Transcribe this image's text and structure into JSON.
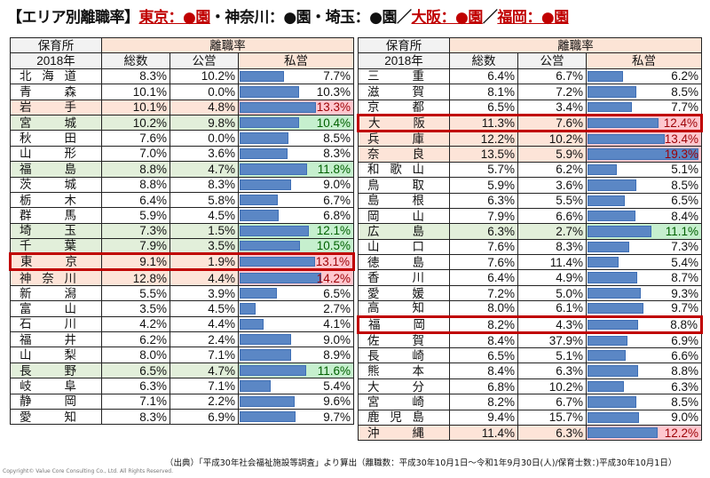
{
  "title": {
    "prefix": "【エリア別離職率】",
    "tokyo": "東京：●園",
    "mid": "・神奈川：●園・埼玉：●園／",
    "osaka": "大阪：●園",
    "sep": "／",
    "fukuoka": "福岡：●園"
  },
  "header": {
    "facility": "保育所",
    "year": "2018年",
    "rate": "離職率",
    "total": "総数",
    "public": "公営",
    "private": "私営"
  },
  "colors": {
    "bar": "#5b87c5",
    "pink_bg": "#ffc7ce",
    "pink_text": "#9c0006",
    "green_bg": "#c6efce",
    "green_text": "#006100",
    "highlight_border": "#c00000"
  },
  "bar_max": 19.3,
  "left": [
    {
      "name": "北海道",
      "total": "8.3%",
      "public": "10.2%",
      "private": "7.7%",
      "p": 7.7,
      "style": ""
    },
    {
      "name": "青森",
      "total": "10.1%",
      "public": "0.0%",
      "private": "10.3%",
      "p": 10.3,
      "style": ""
    },
    {
      "name": "岩手",
      "total": "10.1%",
      "public": "4.8%",
      "private": "13.3%",
      "p": 13.3,
      "style": "pink"
    },
    {
      "name": "宮城",
      "total": "10.2%",
      "public": "9.8%",
      "private": "10.4%",
      "p": 10.4,
      "style": "green"
    },
    {
      "name": "秋田",
      "total": "7.6%",
      "public": "0.0%",
      "private": "8.5%",
      "p": 8.5,
      "style": ""
    },
    {
      "name": "山形",
      "total": "7.0%",
      "public": "3.6%",
      "private": "8.3%",
      "p": 8.3,
      "style": ""
    },
    {
      "name": "福島",
      "total": "8.8%",
      "public": "4.7%",
      "private": "11.8%",
      "p": 11.8,
      "style": "green"
    },
    {
      "name": "茨城",
      "total": "8.8%",
      "public": "8.3%",
      "private": "9.0%",
      "p": 9.0,
      "style": ""
    },
    {
      "name": "栃木",
      "total": "6.4%",
      "public": "5.8%",
      "private": "6.7%",
      "p": 6.7,
      "style": ""
    },
    {
      "name": "群馬",
      "total": "5.9%",
      "public": "4.5%",
      "private": "6.8%",
      "p": 6.8,
      "style": ""
    },
    {
      "name": "埼玉",
      "total": "7.3%",
      "public": "1.5%",
      "private": "12.1%",
      "p": 12.1,
      "style": "green"
    },
    {
      "name": "千葉",
      "total": "7.9%",
      "public": "3.5%",
      "private": "10.5%",
      "p": 10.5,
      "style": "green"
    },
    {
      "name": "東京",
      "total": "9.1%",
      "public": "1.9%",
      "private": "13.1%",
      "p": 13.1,
      "style": "pink",
      "highlight": true
    },
    {
      "name": "神奈川",
      "total": "12.8%",
      "public": "4.4%",
      "private": "14.2%",
      "p": 14.2,
      "style": "pink"
    },
    {
      "name": "新潟",
      "total": "5.5%",
      "public": "3.9%",
      "private": "6.5%",
      "p": 6.5,
      "style": ""
    },
    {
      "name": "富山",
      "total": "3.5%",
      "public": "4.5%",
      "private": "2.7%",
      "p": 2.7,
      "style": ""
    },
    {
      "name": "石川",
      "total": "4.2%",
      "public": "4.4%",
      "private": "4.1%",
      "p": 4.1,
      "style": ""
    },
    {
      "name": "福井",
      "total": "6.2%",
      "public": "2.4%",
      "private": "9.0%",
      "p": 9.0,
      "style": ""
    },
    {
      "name": "山梨",
      "total": "8.0%",
      "public": "7.1%",
      "private": "8.9%",
      "p": 8.9,
      "style": ""
    },
    {
      "name": "長野",
      "total": "6.5%",
      "public": "4.7%",
      "private": "11.6%",
      "p": 11.6,
      "style": "green"
    },
    {
      "name": "岐阜",
      "total": "6.3%",
      "public": "7.1%",
      "private": "5.4%",
      "p": 5.4,
      "style": ""
    },
    {
      "name": "静岡",
      "total": "7.1%",
      "public": "2.2%",
      "private": "9.6%",
      "p": 9.6,
      "style": ""
    },
    {
      "name": "愛知",
      "total": "8.3%",
      "public": "6.9%",
      "private": "9.7%",
      "p": 9.7,
      "style": ""
    }
  ],
  "right": [
    {
      "name": "三重",
      "total": "6.4%",
      "public": "6.7%",
      "private": "6.2%",
      "p": 6.2,
      "style": ""
    },
    {
      "name": "滋賀",
      "total": "8.1%",
      "public": "7.2%",
      "private": "8.5%",
      "p": 8.5,
      "style": ""
    },
    {
      "name": "京都",
      "total": "6.5%",
      "public": "3.4%",
      "private": "7.7%",
      "p": 7.7,
      "style": ""
    },
    {
      "name": "大阪",
      "total": "11.3%",
      "public": "7.6%",
      "private": "12.4%",
      "p": 12.4,
      "style": "pink",
      "highlight": true
    },
    {
      "name": "兵庫",
      "total": "12.2%",
      "public": "10.2%",
      "private": "13.4%",
      "p": 13.4,
      "style": "pink"
    },
    {
      "name": "奈良",
      "total": "13.5%",
      "public": "5.9%",
      "private": "19.3%",
      "p": 19.3,
      "style": "pink"
    },
    {
      "name": "和歌山",
      "total": "5.7%",
      "public": "6.2%",
      "private": "5.1%",
      "p": 5.1,
      "style": ""
    },
    {
      "name": "鳥取",
      "total": "5.9%",
      "public": "3.6%",
      "private": "8.5%",
      "p": 8.5,
      "style": ""
    },
    {
      "name": "島根",
      "total": "6.3%",
      "public": "5.5%",
      "private": "6.5%",
      "p": 6.5,
      "style": ""
    },
    {
      "name": "岡山",
      "total": "7.9%",
      "public": "6.6%",
      "private": "8.4%",
      "p": 8.4,
      "style": ""
    },
    {
      "name": "広島",
      "total": "6.3%",
      "public": "2.7%",
      "private": "11.1%",
      "p": 11.1,
      "style": "green"
    },
    {
      "name": "山口",
      "total": "7.6%",
      "public": "8.3%",
      "private": "7.3%",
      "p": 7.3,
      "style": ""
    },
    {
      "name": "徳島",
      "total": "7.6%",
      "public": "11.4%",
      "private": "5.4%",
      "p": 5.4,
      "style": ""
    },
    {
      "name": "香川",
      "total": "6.4%",
      "public": "4.9%",
      "private": "8.7%",
      "p": 8.7,
      "style": ""
    },
    {
      "name": "愛媛",
      "total": "7.2%",
      "public": "5.0%",
      "private": "9.3%",
      "p": 9.3,
      "style": ""
    },
    {
      "name": "高知",
      "total": "8.0%",
      "public": "6.1%",
      "private": "9.7%",
      "p": 9.7,
      "style": ""
    },
    {
      "name": "福岡",
      "total": "8.2%",
      "public": "4.3%",
      "private": "8.8%",
      "p": 8.8,
      "style": "",
      "highlight": true
    },
    {
      "name": "佐賀",
      "total": "8.4%",
      "public": "37.9%",
      "private": "6.9%",
      "p": 6.9,
      "style": ""
    },
    {
      "name": "長崎",
      "total": "6.5%",
      "public": "5.1%",
      "private": "6.6%",
      "p": 6.6,
      "style": ""
    },
    {
      "name": "熊本",
      "total": "8.4%",
      "public": "6.3%",
      "private": "8.8%",
      "p": 8.8,
      "style": ""
    },
    {
      "name": "大分",
      "total": "6.8%",
      "public": "10.2%",
      "private": "6.3%",
      "p": 6.3,
      "style": ""
    },
    {
      "name": "宮崎",
      "total": "8.2%",
      "public": "6.7%",
      "private": "8.5%",
      "p": 8.5,
      "style": ""
    },
    {
      "name": "鹿児島",
      "total": "9.4%",
      "public": "15.7%",
      "private": "9.0%",
      "p": 9.0,
      "style": ""
    },
    {
      "name": "沖縄",
      "total": "11.4%",
      "public": "6.3%",
      "private": "12.2%",
      "p": 12.2,
      "style": "pink"
    }
  ],
  "footer": {
    "source": "（出典）「平成30年社会福祉施設等調査」より算出（離職数：平成30年10月1日～令和1年9月30日(人)/保育士数：)平成30年10月1日）",
    "copyright": "Copyright© Value Core Consulting Co., Ltd.  All Rights Reserved."
  }
}
